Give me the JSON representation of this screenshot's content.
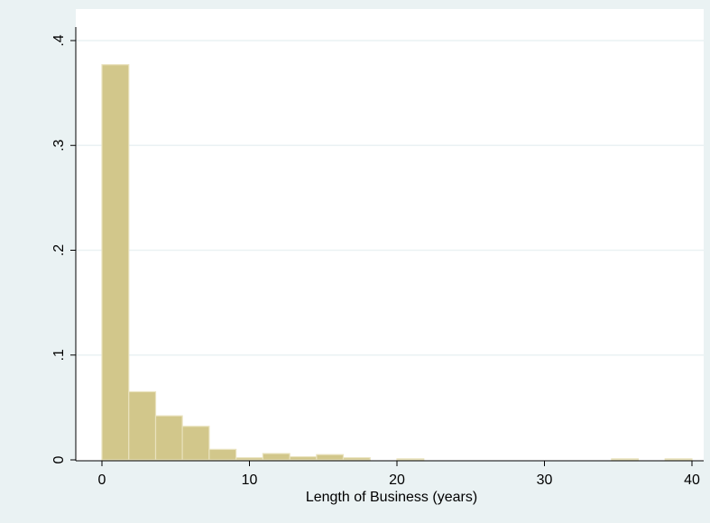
{
  "chart_data": {
    "type": "bar",
    "subtype": "histogram",
    "title": "",
    "xlabel": "Length of Business (years)",
    "ylabel": "",
    "xlim": [
      0,
      40
    ],
    "ylim": [
      0,
      0.4
    ],
    "x_ticks": [
      0,
      10,
      20,
      30,
      40
    ],
    "x_tick_labels": [
      "0",
      "10",
      "20",
      "30",
      "40"
    ],
    "y_ticks": [
      0,
      0.1,
      0.2,
      0.3,
      0.4
    ],
    "y_tick_labels": [
      "0",
      ".1",
      ".2",
      ".3",
      ".4"
    ],
    "grid": "horizontal",
    "bin_width": 1.82,
    "bins": [
      {
        "x0": 0.0,
        "x1": 1.82,
        "value": 0.377
      },
      {
        "x0": 1.82,
        "x1": 3.64,
        "value": 0.065
      },
      {
        "x0": 3.64,
        "x1": 5.45,
        "value": 0.042
      },
      {
        "x0": 5.45,
        "x1": 7.27,
        "value": 0.032
      },
      {
        "x0": 7.27,
        "x1": 9.09,
        "value": 0.01
      },
      {
        "x0": 9.09,
        "x1": 10.91,
        "value": 0.002
      },
      {
        "x0": 10.91,
        "x1": 12.73,
        "value": 0.006
      },
      {
        "x0": 12.73,
        "x1": 14.55,
        "value": 0.003
      },
      {
        "x0": 14.55,
        "x1": 16.36,
        "value": 0.005
      },
      {
        "x0": 16.36,
        "x1": 18.18,
        "value": 0.002
      },
      {
        "x0": 18.18,
        "x1": 20.0,
        "value": 0.0
      },
      {
        "x0": 20.0,
        "x1": 21.82,
        "value": 0.001
      },
      {
        "x0": 21.82,
        "x1": 23.64,
        "value": 0.0
      },
      {
        "x0": 23.64,
        "x1": 25.45,
        "value": 0.0
      },
      {
        "x0": 25.45,
        "x1": 27.27,
        "value": 0.0
      },
      {
        "x0": 27.27,
        "x1": 29.09,
        "value": 0.0
      },
      {
        "x0": 29.09,
        "x1": 30.91,
        "value": 0.0
      },
      {
        "x0": 30.91,
        "x1": 32.73,
        "value": 0.0
      },
      {
        "x0": 32.73,
        "x1": 34.55,
        "value": 0.0
      },
      {
        "x0": 34.55,
        "x1": 36.36,
        "value": 0.001
      },
      {
        "x0": 36.36,
        "x1": 38.18,
        "value": 0.0
      },
      {
        "x0": 38.18,
        "x1": 40.0,
        "value": 0.001
      }
    ],
    "colors": {
      "outer_background": "#eaf2f3",
      "plot_background": "#ffffff",
      "bar_fill": "#d2c78b",
      "bar_edge": "#e9e2bd",
      "grid": "#eaf2f3",
      "axis": "#000000"
    }
  }
}
